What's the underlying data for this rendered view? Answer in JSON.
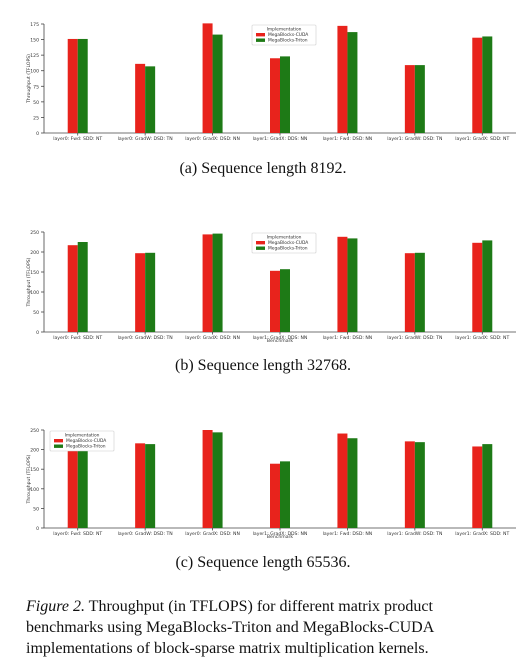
{
  "colors": {
    "cuda": "#e8231c",
    "triton": "#1e7a16",
    "axis": "#444444"
  },
  "figure_caption": {
    "label": "Figure 2.",
    "text": " Throughput (in TFLOPS) for different matrix product benchmarks using MegaBlocks-Triton and MegaBlocks-CUDA implementations of block-sparse matrix multiplication kernels."
  },
  "chart_data": [
    {
      "type": "bar",
      "subcaption": "(a) Sequence length 8192.",
      "ylabel": "Throughput (TFLOPS)",
      "xlabel": "",
      "ylim": [
        0,
        175
      ],
      "yticks": [
        0,
        25,
        50,
        75,
        100,
        125,
        150,
        175
      ],
      "legend": {
        "title": "Implementation",
        "placement": "top-center"
      },
      "categories": [
        "layer0: Fwd: SDD: NT",
        "layer0: GradW: DSD: TN",
        "layer0: GradX: DSD: NN",
        "layer1: GradX: DDS: NN",
        "layer1: Fwd: DSD: NN",
        "layer1: GradW: DSD: TN",
        "layer1: GradX: SDD: NT"
      ],
      "series": [
        {
          "name": "MegaBlocks-CUDA",
          "values": [
            151,
            111,
            176,
            120,
            172,
            109,
            153
          ]
        },
        {
          "name": "MegaBlocks-Triton",
          "values": [
            151,
            107,
            158,
            123,
            162,
            109,
            155
          ]
        }
      ]
    },
    {
      "type": "bar",
      "subcaption": "(b) Sequence length 32768.",
      "ylabel": "Throughput (TFLOPS)",
      "xlabel": "Benchmark",
      "ylim": [
        0,
        250
      ],
      "yticks": [
        0,
        50,
        100,
        150,
        200,
        250
      ],
      "legend": {
        "title": "Implementation",
        "placement": "top-center"
      },
      "categories": [
        "layer0: Fwd: SDD: NT",
        "layer0: GradW: DSD: TN",
        "layer0: GradX: DSD: NN",
        "layer1: GradX: DDS: NN",
        "layer1: Fwd: DSD: NN",
        "layer1: GradW: DSD: TN",
        "layer1: GradX: SDD: NT"
      ],
      "series": [
        {
          "name": "MegaBlocks-CUDA",
          "values": [
            217,
            197,
            244,
            153,
            238,
            197,
            223
          ]
        },
        {
          "name": "MegaBlocks-Triton",
          "values": [
            225,
            198,
            246,
            157,
            234,
            198,
            229
          ]
        }
      ]
    },
    {
      "type": "bar",
      "subcaption": "(c) Sequence length 65536.",
      "ylabel": "Throughput (TFLOPS)",
      "xlabel": "Benchmark",
      "ylim": [
        0,
        250
      ],
      "yticks": [
        0,
        50,
        100,
        150,
        200,
        250
      ],
      "legend": {
        "title": "Implementation",
        "placement": "top-left"
      },
      "categories": [
        "layer0: Fwd: SDD: NT",
        "layer0: GradW: DSD: TN",
        "layer0: GradX: DSD: NN",
        "layer1: GradX: DDS: NN",
        "layer1: Fwd: DSD: NN",
        "layer1: GradW: DSD: TN",
        "layer1: GradX: SDD: NT"
      ],
      "series": [
        {
          "name": "MegaBlocks-CUDA",
          "values": [
            207,
            216,
            250,
            164,
            241,
            221,
            208
          ]
        },
        {
          "name": "MegaBlocks-Triton",
          "values": [
            213,
            214,
            244,
            170,
            229,
            219,
            214
          ]
        }
      ]
    }
  ]
}
